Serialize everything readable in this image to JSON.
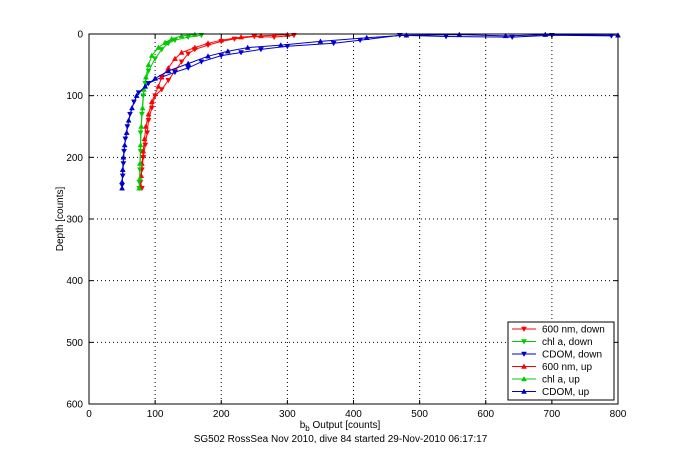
{
  "caption": "SG502 RossSea Nov 2010, dive 84 started 29-Nov-2010 06:17:17",
  "chart_data": {
    "type": "scatter",
    "xlabel_main": "b",
    "xlabel_sub": "b",
    "xlabel_rest": " Output [counts]",
    "ylabel": "Depth [counts]",
    "xlim": [
      0,
      800
    ],
    "ylim": [
      600,
      0
    ],
    "y_reversed": true,
    "xticks": [
      0,
      100,
      200,
      300,
      400,
      500,
      600,
      700,
      800
    ],
    "yticks": [
      0,
      100,
      200,
      300,
      400,
      500,
      600
    ],
    "grid": true,
    "legend_position": "bottom-right",
    "series": [
      {
        "name": "600 nm, down",
        "color": "#ff0000",
        "marker": "triangle-down",
        "points": [
          [
            310,
            2
          ],
          [
            280,
            5
          ],
          [
            250,
            4
          ],
          [
            220,
            8
          ],
          [
            200,
            12
          ],
          [
            180,
            18
          ],
          [
            160,
            25
          ],
          [
            150,
            32
          ],
          [
            140,
            45
          ],
          [
            130,
            60
          ],
          [
            120,
            75
          ],
          [
            110,
            90
          ],
          [
            100,
            100
          ],
          [
            95,
            120
          ],
          [
            90,
            140
          ],
          [
            88,
            160
          ],
          [
            85,
            180
          ],
          [
            82,
            200
          ],
          [
            80,
            220
          ],
          [
            78,
            240
          ],
          [
            80,
            250
          ]
        ]
      },
      {
        "name": "chl a, down",
        "color": "#00cc00",
        "marker": "triangle-down",
        "points": [
          [
            170,
            2
          ],
          [
            150,
            5
          ],
          [
            130,
            10
          ],
          [
            120,
            15
          ],
          [
            110,
            25
          ],
          [
            100,
            40
          ],
          [
            90,
            60
          ],
          [
            85,
            80
          ],
          [
            82,
            100
          ],
          [
            80,
            130
          ],
          [
            78,
            160
          ],
          [
            78,
            190
          ],
          [
            77,
            220
          ],
          [
            76,
            240
          ],
          [
            76,
            250
          ]
        ]
      },
      {
        "name": "CDOM, down",
        "color": "#0000cc",
        "marker": "triangle-down",
        "points": [
          [
            790,
            3
          ],
          [
            700,
            2
          ],
          [
            640,
            5
          ],
          [
            540,
            4
          ],
          [
            470,
            2
          ],
          [
            410,
            10
          ],
          [
            370,
            15
          ],
          [
            300,
            20
          ],
          [
            260,
            25
          ],
          [
            230,
            30
          ],
          [
            200,
            35
          ],
          [
            170,
            45
          ],
          [
            150,
            55
          ],
          [
            130,
            62
          ],
          [
            110,
            70
          ],
          [
            90,
            80
          ],
          [
            75,
            95
          ],
          [
            68,
            110
          ],
          [
            62,
            130
          ],
          [
            58,
            150
          ],
          [
            55,
            170
          ],
          [
            53,
            190
          ],
          [
            52,
            210
          ],
          [
            51,
            230
          ],
          [
            50,
            245
          ]
        ]
      },
      {
        "name": "600 nm, up",
        "color": "#ff0000",
        "marker": "triangle-up",
        "points": [
          [
            300,
            1
          ],
          [
            260,
            3
          ],
          [
            230,
            5
          ],
          [
            200,
            10
          ],
          [
            180,
            15
          ],
          [
            160,
            22
          ],
          [
            140,
            30
          ],
          [
            130,
            40
          ],
          [
            120,
            55
          ],
          [
            110,
            70
          ],
          [
            105,
            85
          ],
          [
            95,
            110
          ],
          [
            90,
            130
          ],
          [
            86,
            150
          ],
          [
            84,
            170
          ],
          [
            82,
            190
          ],
          [
            80,
            210
          ],
          [
            79,
            230
          ],
          [
            78,
            248
          ]
        ]
      },
      {
        "name": "chl a, up",
        "color": "#00cc00",
        "marker": "triangle-up",
        "points": [
          [
            160,
            1
          ],
          [
            140,
            3
          ],
          [
            125,
            8
          ],
          [
            115,
            14
          ],
          [
            105,
            22
          ],
          [
            95,
            35
          ],
          [
            90,
            50
          ],
          [
            86,
            70
          ],
          [
            83,
            90
          ],
          [
            81,
            120
          ],
          [
            79,
            150
          ],
          [
            78,
            180
          ],
          [
            77,
            210
          ],
          [
            77,
            235
          ],
          [
            76,
            250
          ]
        ]
      },
      {
        "name": "CDOM, up",
        "color": "#0000cc",
        "marker": "triangle-up",
        "points": [
          [
            800,
            2
          ],
          [
            690,
            1
          ],
          [
            630,
            3
          ],
          [
            560,
            1
          ],
          [
            480,
            2
          ],
          [
            420,
            6
          ],
          [
            350,
            12
          ],
          [
            290,
            18
          ],
          [
            240,
            22
          ],
          [
            210,
            28
          ],
          [
            180,
            36
          ],
          [
            150,
            48
          ],
          [
            120,
            60
          ],
          [
            100,
            72
          ],
          [
            85,
            85
          ],
          [
            72,
            100
          ],
          [
            65,
            120
          ],
          [
            60,
            140
          ],
          [
            57,
            160
          ],
          [
            54,
            180
          ],
          [
            52,
            200
          ],
          [
            51,
            220
          ],
          [
            50,
            240
          ],
          [
            50,
            250
          ]
        ]
      }
    ]
  }
}
